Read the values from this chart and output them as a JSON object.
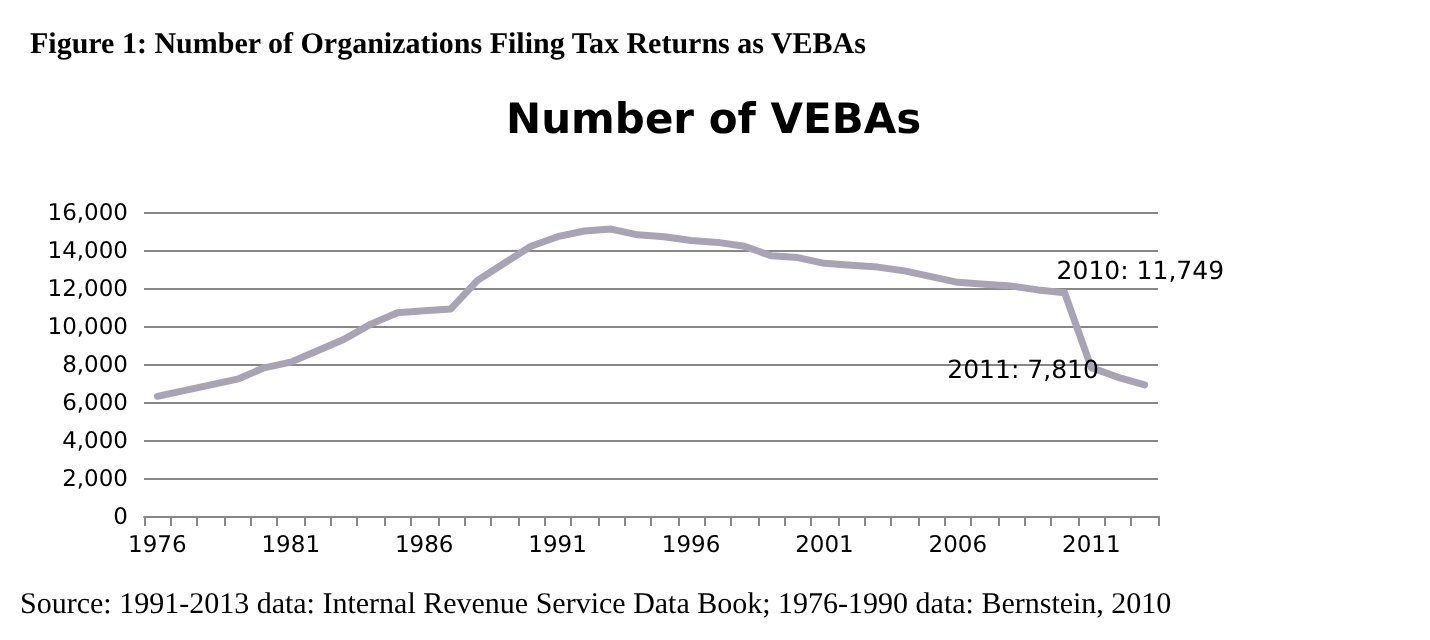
{
  "chart_data": {
    "type": "line",
    "title": "Figure 1: Number of Organizations Filing Tax Returns as VEBAs",
    "subtitle": "Number of VEBAs",
    "x": [
      1976,
      1977,
      1978,
      1979,
      1980,
      1981,
      1982,
      1983,
      1984,
      1985,
      1986,
      1987,
      1988,
      1989,
      1990,
      1991,
      1992,
      1993,
      1994,
      1995,
      1996,
      1997,
      1998,
      1999,
      2000,
      2001,
      2002,
      2003,
      2004,
      2005,
      2006,
      2007,
      2008,
      2009,
      2010,
      2011,
      2012,
      2013
    ],
    "series": [
      {
        "color": "#a8a4b4",
        "values": [
          6300,
          6600,
          6900,
          7200,
          7800,
          8100,
          8700,
          9300,
          10100,
          10700,
          10800,
          10900,
          12400,
          13300,
          14200,
          14700,
          15000,
          15100,
          14800,
          14700,
          14500,
          14400,
          14200,
          13700,
          13600,
          13300,
          13200,
          13100,
          12900,
          12600,
          12300,
          12200,
          12100,
          11900,
          11749,
          7810,
          7300,
          6900
        ]
      }
    ],
    "xlim": [
      1975.5,
      2013.5
    ],
    "xticks": [
      1976,
      1981,
      1986,
      1991,
      1996,
      2001,
      2006,
      2011
    ],
    "ylim": [
      0,
      16000
    ],
    "yticks": [
      0,
      {
        "value": 2000,
        "label": "2,000"
      },
      {
        "value": 4000,
        "label": "4,000"
      },
      {
        "value": 6000,
        "label": "6,000"
      },
      {
        "value": 8000,
        "label": "8,000"
      },
      {
        "value": 10000,
        "label": "10,000"
      },
      {
        "value": 12000,
        "label": "12,000"
      },
      {
        "value": 14000,
        "label": "14,000"
      },
      {
        "value": 16000,
        "label": "16,000"
      }
    ],
    "grid": "y",
    "marker": "none",
    "line_style": "solid",
    "annotations": [
      {
        "text": "2010: 11,749",
        "x": 2010,
        "y": 11749
      },
      {
        "text": "2011: 7,810",
        "x": 2011,
        "y": 7810
      },
      "Source: 1991-2013 data: Internal Revenue Service Data Book; 1976-1990 data: Bernstein, 2010"
    ]
  }
}
